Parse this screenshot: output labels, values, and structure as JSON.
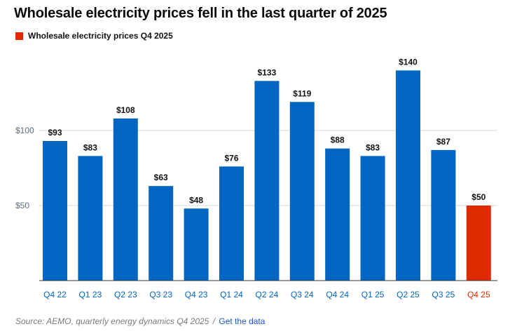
{
  "title": "Wholesale electricity prices fell in the last quarter of 2025",
  "legend": {
    "label": "Wholesale electricity prices Q4 2025"
  },
  "colors": {
    "bar": "#0066c2",
    "highlight": "#dd2a00",
    "axis_text": "#5e6f7f",
    "grid": "#d9d9d9",
    "link": "#1a56c4"
  },
  "chart_data": {
    "type": "bar",
    "categories": [
      "Q4 22",
      "Q1 23",
      "Q2 23",
      "Q3 23",
      "Q4 23",
      "Q1 24",
      "Q2 24",
      "Q3 24",
      "Q4 24",
      "Q1 25",
      "Q2 25",
      "Q3 25",
      "Q4 25"
    ],
    "values": [
      93,
      83,
      108,
      63,
      48,
      76,
      133,
      119,
      88,
      83,
      140,
      87,
      50
    ],
    "data_labels": [
      "$93",
      "$83",
      "$108",
      "$63",
      "$48",
      "$76",
      "$133",
      "$119",
      "$88",
      "$83",
      "$140",
      "$87",
      "$50"
    ],
    "highlight_index": 12,
    "yticks": [
      50,
      100
    ],
    "ytick_labels": [
      "$50",
      "$100"
    ],
    "ylim": [
      0,
      150
    ],
    "title": "Wholesale electricity prices fell in the last quarter of 2025",
    "xlabel": "",
    "ylabel": ""
  },
  "footer": {
    "source": "Source: AEMO, quarterly energy dynamics Q4 2025",
    "separator": "/",
    "link": "Get the data"
  }
}
